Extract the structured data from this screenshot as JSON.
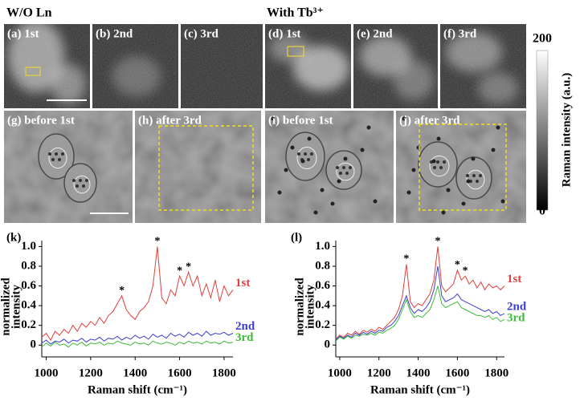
{
  "headers": [
    "W/O Ln",
    "With Tb³⁺"
  ],
  "panels": [
    "(a) 1st",
    "(b) 2nd",
    "(c) 3rd",
    "(d) 1st",
    "(e) 2nd",
    "(f) 3rd",
    "(g) before 1st",
    "(h) after 3rd",
    "(i) before 1st",
    "(j) after 3rd"
  ],
  "colorbar": {
    "label": "Raman intensity (a.u.)",
    "range": [
      0,
      200
    ],
    "ticks": [
      0,
      200
    ]
  },
  "chart_data": [
    {
      "type": "line",
      "panel_label": "(k)",
      "ylabel": [
        "normalized",
        "intensity"
      ],
      "xlabel": "Raman shift (cm⁻¹)",
      "x": [
        980,
        1000,
        1020,
        1040,
        1060,
        1080,
        1100,
        1120,
        1140,
        1160,
        1180,
        1200,
        1220,
        1240,
        1260,
        1280,
        1300,
        1320,
        1340,
        1360,
        1380,
        1400,
        1420,
        1440,
        1460,
        1480,
        1500,
        1520,
        1540,
        1560,
        1580,
        1600,
        1620,
        1640,
        1660,
        1680,
        1700,
        1720,
        1740,
        1760,
        1780,
        1800,
        1820,
        1840
      ],
      "xlim": [
        980,
        1840
      ],
      "ylim": [
        -0.12,
        1.06
      ],
      "xticks": [
        1000,
        1200,
        1400,
        1600,
        1800
      ],
      "yticks": [
        0,
        0.2,
        0.4,
        0.6,
        0.8,
        {
          "value": 1,
          "label": "1.0"
        }
      ],
      "series": [
        {
          "name": "1st",
          "color": "#e0403a",
          "values": [
            0.08,
            0.12,
            0.05,
            0.14,
            0.1,
            0.16,
            0.12,
            0.2,
            0.14,
            0.22,
            0.18,
            0.24,
            0.2,
            0.28,
            0.22,
            0.3,
            0.34,
            0.42,
            0.5,
            0.36,
            0.3,
            0.26,
            0.34,
            0.38,
            0.44,
            0.6,
            1.0,
            0.48,
            0.42,
            0.56,
            0.5,
            0.7,
            0.6,
            0.74,
            0.6,
            0.7,
            0.5,
            0.62,
            0.48,
            0.66,
            0.44,
            0.6,
            0.5,
            0.56
          ]
        },
        {
          "name": "2nd",
          "color": "#3a3fcf",
          "values": [
            0.02,
            0.05,
            0.01,
            0.04,
            0.03,
            0.06,
            0.02,
            0.05,
            0.04,
            0.07,
            0.03,
            0.06,
            0.05,
            0.08,
            0.04,
            0.07,
            0.06,
            0.09,
            0.05,
            0.08,
            0.06,
            0.1,
            0.07,
            0.09,
            0.06,
            0.11,
            0.08,
            0.1,
            0.07,
            0.12,
            0.09,
            0.11,
            0.08,
            0.13,
            0.1,
            0.12,
            0.09,
            0.14,
            0.1,
            0.12,
            0.11,
            0.13,
            0.1,
            0.12
          ]
        },
        {
          "name": "3rd",
          "color": "#3dbb3a",
          "values": [
            -0.02,
            0.02,
            -0.01,
            0.03,
            0,
            0.01,
            -0.02,
            0.02,
            0,
            0.03,
            -0.01,
            0.02,
            0.01,
            0.03,
            0,
            0.02,
            0.01,
            0.04,
            0.02,
            0.01,
            0,
            0.03,
            0.01,
            0.02,
            0,
            0.04,
            0.02,
            0.01,
            0.03,
            0.02,
            0,
            0.03,
            0.01,
            0.04,
            0.02,
            0.03,
            0.01,
            0.04,
            0.02,
            0.03,
            0.01,
            0.04,
            0.02,
            0.03
          ]
        }
      ],
      "annotations": [
        {
          "text": "*",
          "x": 1340,
          "y": 0.5
        },
        {
          "text": "*",
          "x": 1500,
          "y": 1.0
        },
        {
          "text": "*",
          "x": 1600,
          "y": 0.7
        },
        {
          "text": "*",
          "x": 1640,
          "y": 0.74
        }
      ]
    },
    {
      "type": "line",
      "panel_label": "(l)",
      "ylabel": [
        "normalized",
        "intensity"
      ],
      "xlabel": "Raman shift (cm⁻¹)",
      "x": [
        980,
        1000,
        1020,
        1040,
        1060,
        1080,
        1100,
        1120,
        1140,
        1160,
        1180,
        1200,
        1220,
        1240,
        1260,
        1280,
        1300,
        1320,
        1340,
        1360,
        1380,
        1400,
        1420,
        1440,
        1460,
        1480,
        1500,
        1520,
        1540,
        1560,
        1580,
        1600,
        1620,
        1640,
        1660,
        1680,
        1700,
        1720,
        1740,
        1760,
        1780,
        1800,
        1820,
        1840
      ],
      "xlim": [
        980,
        1840
      ],
      "ylim": [
        -0.12,
        1.06
      ],
      "xticks": [
        1000,
        1200,
        1400,
        1600,
        1800
      ],
      "yticks": [
        0,
        0.2,
        0.4,
        0.6,
        0.8,
        {
          "value": 1,
          "label": "1.0"
        }
      ],
      "series": [
        {
          "name": "1st",
          "color": "#e0403a",
          "values": [
            0.06,
            0.1,
            0.08,
            0.12,
            0.1,
            0.14,
            0.11,
            0.15,
            0.13,
            0.16,
            0.14,
            0.18,
            0.16,
            0.2,
            0.24,
            0.28,
            0.36,
            0.5,
            0.82,
            0.44,
            0.38,
            0.42,
            0.4,
            0.46,
            0.52,
            0.66,
            1.0,
            0.6,
            0.54,
            0.58,
            0.62,
            0.76,
            0.66,
            0.7,
            0.62,
            0.66,
            0.58,
            0.64,
            0.56,
            0.62,
            0.58,
            0.6,
            0.56,
            0.6
          ]
        },
        {
          "name": "2nd",
          "color": "#3a3fcf",
          "values": [
            0.05,
            0.09,
            0.07,
            0.1,
            0.08,
            0.12,
            0.1,
            0.13,
            0.11,
            0.14,
            0.12,
            0.15,
            0.14,
            0.18,
            0.2,
            0.24,
            0.3,
            0.4,
            0.5,
            0.38,
            0.32,
            0.36,
            0.34,
            0.38,
            0.44,
            0.56,
            0.8,
            0.5,
            0.44,
            0.46,
            0.48,
            0.52,
            0.46,
            0.44,
            0.42,
            0.4,
            0.38,
            0.36,
            0.34,
            0.36,
            0.32,
            0.34,
            0.3,
            0.32
          ]
        },
        {
          "name": "3rd",
          "color": "#3dbb3a",
          "values": [
            0.04,
            0.08,
            0.06,
            0.09,
            0.07,
            0.1,
            0.09,
            0.11,
            0.1,
            0.12,
            0.1,
            0.13,
            0.12,
            0.15,
            0.17,
            0.2,
            0.26,
            0.36,
            0.46,
            0.34,
            0.28,
            0.3,
            0.28,
            0.32,
            0.36,
            0.46,
            0.6,
            0.42,
            0.38,
            0.4,
            0.42,
            0.44,
            0.38,
            0.36,
            0.34,
            0.32,
            0.3,
            0.3,
            0.28,
            0.3,
            0.26,
            0.28,
            0.24,
            0.26
          ]
        }
      ],
      "annotations": [
        {
          "text": "*",
          "x": 1340,
          "y": 0.82
        },
        {
          "text": "*",
          "x": 1500,
          "y": 1.0
        },
        {
          "text": "*",
          "x": 1600,
          "y": 0.76
        },
        {
          "text": "*",
          "x": 1640,
          "y": 0.7
        }
      ]
    }
  ]
}
